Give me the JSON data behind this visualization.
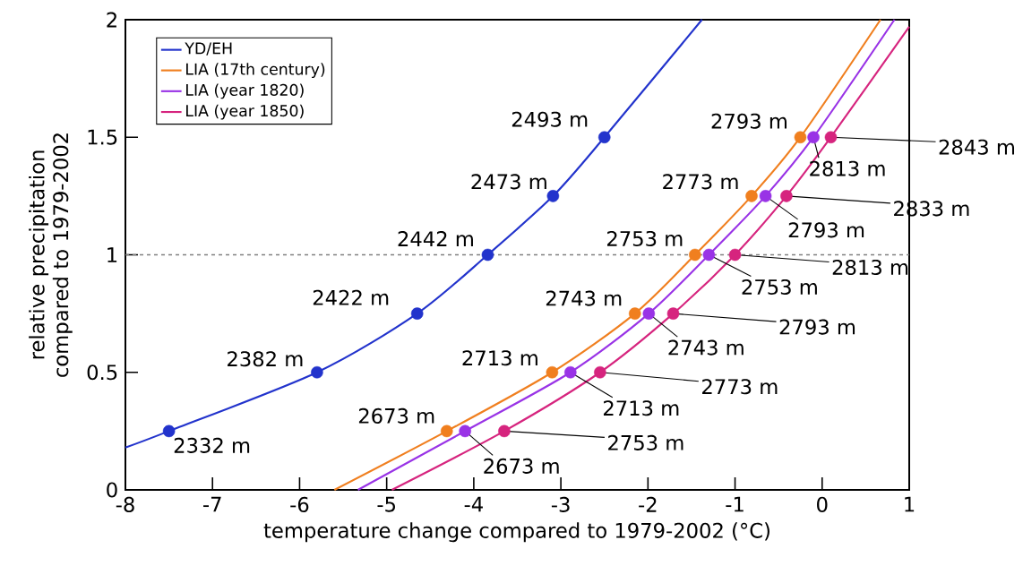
{
  "chart_data": {
    "type": "line",
    "xlabel": "temperature change compared to 1979-2002 (°C)",
    "ylabel": "relative precipitation compared to 1979-2002",
    "xlim": [
      -8,
      1
    ],
    "ylim": [
      0,
      2
    ],
    "xticks": [
      -8,
      -7,
      -6,
      -5,
      -4,
      -3,
      -2,
      -1,
      0,
      1
    ],
    "yticks": [
      0,
      0.5,
      1,
      1.5,
      2
    ],
    "legend": "top left",
    "series": [
      {
        "name": "YD/EH",
        "color": "#2233cc",
        "marker": "none",
        "x": [
          -8,
          -7.5,
          -5.8,
          -4.65,
          -3.84,
          -3.09,
          -2.5,
          -1.38
        ],
        "values": [
          0.18,
          0.25,
          0.5,
          0.75,
          1,
          1.25,
          1.5,
          2
        ]
      },
      {
        "name": "LIA (17th century)",
        "color": "#f07f1f",
        "marker": "none",
        "x": [
          -5.6,
          -4.31,
          -3.1,
          -2.15,
          -1.46,
          -0.81,
          -0.25,
          0.67
        ],
        "values": [
          0,
          0.25,
          0.5,
          0.75,
          1,
          1.25,
          1.5,
          2
        ]
      },
      {
        "name": "LIA (year 1820)",
        "color": "#9933e6",
        "marker": "none",
        "x": [
          -5.33,
          -4.1,
          -2.89,
          -1.99,
          -1.3,
          -0.65,
          -0.1,
          0.83
        ],
        "values": [
          0,
          0.25,
          0.5,
          0.75,
          1,
          1.25,
          1.5,
          2
        ]
      },
      {
        "name": "LIA (year 1850)",
        "color": "#d6247e",
        "marker": "none",
        "x": [
          -4.94,
          -3.65,
          -2.55,
          -1.71,
          -1,
          -0.41,
          0.1,
          1
        ],
        "values": [
          0,
          0.25,
          0.5,
          0.75,
          1,
          1.25,
          1.5,
          1.97
        ]
      },
      {
        "type": "scatter",
        "color": "#2233cc",
        "marker": "circle",
        "x": [
          -7.5,
          -5.8,
          -4.65,
          -3.84,
          -3.09,
          -2.5
        ],
        "values": [
          0.25,
          0.5,
          0.75,
          1,
          1.25,
          1.5
        ]
      },
      {
        "type": "scatter",
        "color": "#f07f1f",
        "marker": "circle",
        "x": [
          -4.31,
          -3.1,
          -2.15,
          -1.46,
          -0.81,
          -0.25
        ],
        "values": [
          0.25,
          0.5,
          0.75,
          1,
          1.25,
          1.5
        ]
      },
      {
        "type": "scatter",
        "color": "#9933e6",
        "marker": "circle",
        "x": [
          -4.1,
          -2.89,
          -1.99,
          -1.3,
          -0.65,
          -0.1
        ],
        "values": [
          0.25,
          0.5,
          0.75,
          1,
          1.25,
          1.5
        ]
      },
      {
        "type": "scatter",
        "color": "#d6247e",
        "marker": "circle",
        "x": [
          -3.65,
          -2.55,
          -1.71,
          -1,
          -0.41,
          0.1
        ],
        "values": [
          0.25,
          0.5,
          0.75,
          1,
          1.25,
          1.5
        ]
      }
    ],
    "ref_lines": [
      {
        "axis": "y",
        "value": 1,
        "color": "#808080",
        "line_style": "dashed"
      }
    ],
    "annotations": [
      {
        "text": "2332 m",
        "x": -7.5,
        "y": 0.25
      },
      {
        "text": "2382 m",
        "x": -5.8,
        "y": 0.5
      },
      {
        "text": "2422 m",
        "x": -4.65,
        "y": 0.75
      },
      {
        "text": "2442 m",
        "x": -3.84,
        "y": 1
      },
      {
        "text": "2473 m",
        "x": -3.09,
        "y": 1.25
      },
      {
        "text": "2493 m",
        "x": -2.5,
        "y": 1.5
      },
      {
        "text": "2673 m",
        "x": -4.31,
        "y": 0.25
      },
      {
        "text": "2713 m",
        "x": -3.1,
        "y": 0.5
      },
      {
        "text": "2743 m",
        "x": -2.15,
        "y": 0.75
      },
      {
        "text": "2753 m",
        "x": -1.46,
        "y": 1
      },
      {
        "text": "2773 m",
        "x": -0.81,
        "y": 1.25
      },
      {
        "text": "2793 m",
        "x": -0.25,
        "y": 1.5
      },
      {
        "text": "2673 m",
        "x": -4.1,
        "y": 0.25
      },
      {
        "text": "2713 m",
        "x": -2.89,
        "y": 0.5
      },
      {
        "text": "2743 m",
        "x": -1.99,
        "y": 0.75
      },
      {
        "text": "2753 m",
        "x": -1.3,
        "y": 1
      },
      {
        "text": "2793 m",
        "x": -0.65,
        "y": 1.25
      },
      {
        "text": "2813 m",
        "x": -0.1,
        "y": 1.5
      },
      {
        "text": "2753 m",
        "x": -3.65,
        "y": 0.25
      },
      {
        "text": "2773 m",
        "x": -2.55,
        "y": 0.5
      },
      {
        "text": "2793 m",
        "x": -1.71,
        "y": 0.75
      },
      {
        "text": "2813 m",
        "x": -1,
        "y": 1
      },
      {
        "text": "2833 m",
        "x": -0.41,
        "y": 1.25
      },
      {
        "text": "2843 m",
        "x": 0.1,
        "y": 1.5
      }
    ]
  }
}
